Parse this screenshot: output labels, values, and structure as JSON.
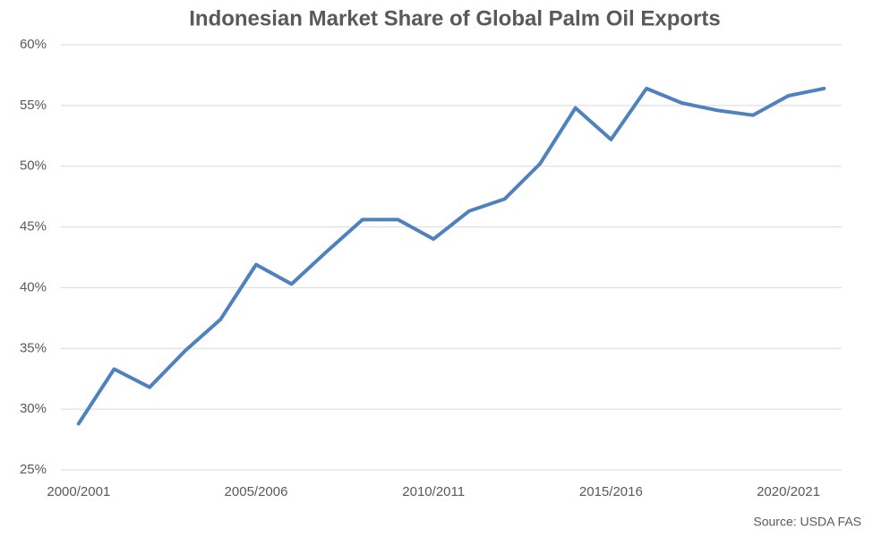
{
  "chart_data": {
    "type": "line",
    "title": "Indonesian Market Share of Global Palm Oil Exports",
    "source": "Source: USDA FAS",
    "categories": [
      "2000/2001",
      null,
      null,
      null,
      null,
      "2005/2006",
      null,
      null,
      null,
      null,
      "2010/2011",
      null,
      null,
      null,
      null,
      "2015/2016",
      null,
      null,
      null,
      null,
      "2020/2021",
      null
    ],
    "series": [
      {
        "name": "Indonesia",
        "color": "#4f81bd",
        "values": [
          28.8,
          33.3,
          31.8,
          34.8,
          37.4,
          41.9,
          40.3,
          43.0,
          45.6,
          45.6,
          44.0,
          46.3,
          47.3,
          50.2,
          54.8,
          52.2,
          56.4,
          55.2,
          54.6,
          54.2,
          55.8,
          56.4
        ]
      }
    ],
    "ylim": [
      25,
      60
    ],
    "yticks": [
      {
        "value": 25,
        "label": "25%"
      },
      {
        "value": 30,
        "label": "30%"
      },
      {
        "value": 35,
        "label": "35%"
      },
      {
        "value": 40,
        "label": "40%"
      },
      {
        "value": 45,
        "label": "45%"
      },
      {
        "value": 50,
        "label": "50%"
      },
      {
        "value": 55,
        "label": "55%"
      },
      {
        "value": 60,
        "label": "60%"
      }
    ],
    "grid": true
  }
}
